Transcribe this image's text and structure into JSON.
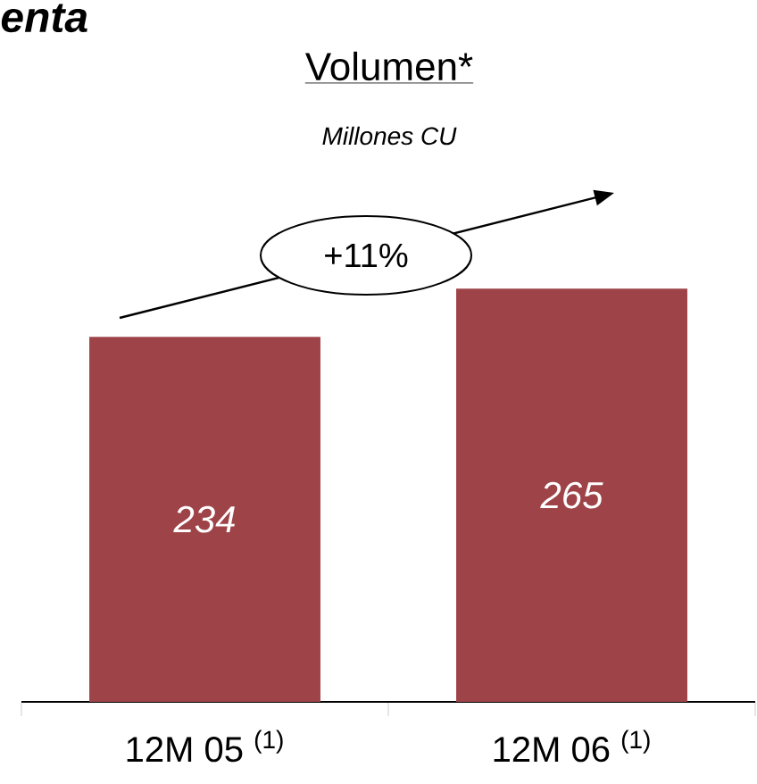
{
  "chart_data": {
    "type": "bar",
    "title": "Volumen*",
    "subtitle": "Millones CU",
    "categories": [
      "12M 05 $^{(1)}$",
      "12M 06 $^{(1)}$"
    ],
    "values": [
      234,
      265
    ],
    "color": "#9e4448",
    "tick_labels": "x",
    "data_labels": true,
    "grid": false,
    "annotations": [
      "enta",
      "+11%"
    ]
  }
}
